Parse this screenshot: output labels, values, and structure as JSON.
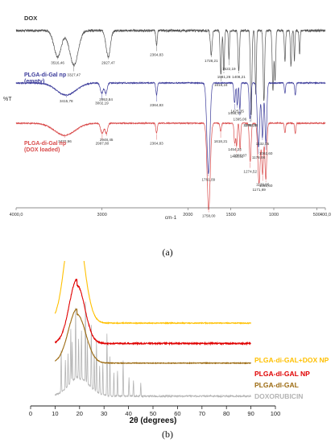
{
  "chart_data": [
    {
      "type": "line",
      "panel_label": "(a)",
      "xlabel": "cm-1",
      "ylabel": "%T",
      "xlim": [
        4000.0,
        400.0
      ],
      "x_ticks": [
        "4000,0",
        "3000",
        "2000",
        "1500",
        "1000",
        "500",
        "400,0"
      ],
      "x_tick_values": [
        4000,
        3000,
        2000,
        1500,
        1000,
        500,
        400
      ],
      "series": [
        {
          "name": "DOX",
          "color": "#555555",
          "baseline": 0.88,
          "noise": 0.012,
          "peaks": [
            {
              "x": 3516.46,
              "depth": 0.13,
              "w": 60,
              "label": "3516,46"
            },
            {
              "x": 3327.47,
              "depth": 0.17,
              "w": 70,
              "label": "3327,47"
            },
            {
              "x": 2927.47,
              "depth": 0.13,
              "w": 35,
              "label": "2927,47"
            },
            {
              "x": 2364.83,
              "depth": 0.07,
              "w": 12,
              "label": "2364,83"
            },
            {
              "x": 1728.21,
              "depth": 0.12,
              "w": 14,
              "label": "1728,21"
            },
            {
              "x": 1616.24,
              "depth": 0.22,
              "w": 12,
              "label": "1616,24"
            },
            {
              "x": 1581.26,
              "depth": 0.2,
              "w": 10,
              "label": "1581,26"
            },
            {
              "x": 1522.19,
              "depth": 0.14,
              "w": 8,
              "label": "1522,19"
            },
            {
              "x": 1408.21,
              "depth": 0.2,
              "w": 12,
              "label": "1408,21"
            },
            {
              "x": 1263.28,
              "depth": 0.42,
              "w": 12,
              "label": "1263,28"
            },
            {
              "x": 1210,
              "depth": 0.32,
              "w": 10,
              "label": ""
            },
            {
              "x": 1115,
              "depth": 0.35,
              "w": 12,
              "label": ""
            },
            {
              "x": 1010,
              "depth": 0.3,
              "w": 12,
              "label": ""
            },
            {
              "x": 985,
              "depth": 0.25,
              "w": 10,
              "label": ""
            },
            {
              "x": 870,
              "depth": 0.15,
              "w": 10,
              "label": ""
            },
            {
              "x": 800,
              "depth": 0.18,
              "w": 10,
              "label": ""
            },
            {
              "x": 760,
              "depth": 0.15,
              "w": 8,
              "label": ""
            },
            {
              "x": 700,
              "depth": 0.12,
              "w": 8,
              "label": ""
            }
          ]
        },
        {
          "name": "PLGA-di-Gal np (empty)",
          "color": "#3b3b9a",
          "baseline": 0.62,
          "noise": 0.006,
          "peaks": [
            {
              "x": 3415.78,
              "depth": 0.06,
              "w": 160,
              "label": "3415,78"
            },
            {
              "x": 3002.19,
              "depth": 0.05,
              "w": 25,
              "label": "3002,19"
            },
            {
              "x": 2953.84,
              "depth": 0.05,
              "w": 20,
              "label": "2953,84"
            },
            {
              "x": 2364.83,
              "depth": 0.06,
              "w": 12,
              "label": "2364,83"
            },
            {
              "x": 1761.09,
              "depth": 0.45,
              "w": 25,
              "label": "1761,09"
            },
            {
              "x": 1456.43,
              "depth": 0.1,
              "w": 12,
              "label": "1456,43"
            },
            {
              "x": 1425.35,
              "depth": 0.11,
              "w": 10,
              "label": "1425,35"
            },
            {
              "x": 1395.06,
              "depth": 0.13,
              "w": 10,
              "label": "1395,06"
            },
            {
              "x": 1276.71,
              "depth": 0.18,
              "w": 14,
              "label": "1276,71"
            },
            {
              "x": 1178.06,
              "depth": 0.32,
              "w": 20,
              "label": "1178,06"
            },
            {
              "x": 1132.05,
              "depth": 0.27,
              "w": 15,
              "label": "1132,05"
            },
            {
              "x": 1092.6,
              "depth": 0.3,
              "w": 15,
              "label": "1092,60"
            },
            {
              "x": 870,
              "depth": 0.05,
              "w": 10,
              "label": ""
            },
            {
              "x": 750,
              "depth": 0.06,
              "w": 10,
              "label": ""
            }
          ]
        },
        {
          "name": "PLGA-di-Gal np (DOX loaded)",
          "color": "#d94a4a",
          "baseline": 0.42,
          "noise": 0.006,
          "peaks": [
            {
              "x": 3432.96,
              "depth": 0.06,
              "w": 170,
              "label": "3432,96"
            },
            {
              "x": 2997.8,
              "depth": 0.05,
              "w": 25,
              "label": "2997,80"
            },
            {
              "x": 2948.45,
              "depth": 0.05,
              "w": 20,
              "label": "2948,45"
            },
            {
              "x": 2364.83,
              "depth": 0.05,
              "w": 12,
              "label": "2364,83"
            },
            {
              "x": 1758.0,
              "depth": 0.43,
              "w": 25,
              "label": "1758,00"
            },
            {
              "x": 1618.21,
              "depth": 0.04,
              "w": 12,
              "label": "1618,21"
            },
            {
              "x": 1454.24,
              "depth": 0.1,
              "w": 12,
              "label": "1454,24"
            },
            {
              "x": 1432.32,
              "depth": 0.11,
              "w": 10,
              "label": "1432,32"
            },
            {
              "x": 1392.87,
              "depth": 0.13,
              "w": 10,
              "label": "1392,87"
            },
            {
              "x": 1274.52,
              "depth": 0.19,
              "w": 14,
              "label": "1274,52"
            },
            {
              "x": 1171.69,
              "depth": 0.3,
              "w": 20,
              "label": "1171,69"
            },
            {
              "x": 1129.86,
              "depth": 0.25,
              "w": 15,
              "label": "1129,86"
            },
            {
              "x": 1092.6,
              "depth": 0.28,
              "w": 15,
              "label": "1092,60"
            },
            {
              "x": 870,
              "depth": 0.05,
              "w": 10,
              "label": ""
            },
            {
              "x": 750,
              "depth": 0.05,
              "w": 10,
              "label": ""
            }
          ]
        }
      ]
    },
    {
      "type": "line",
      "panel_label": "(b)",
      "xlabel": "2θ (degrees)",
      "ylabel": "",
      "xlim": [
        0,
        100
      ],
      "x_ticks": [
        0,
        10,
        20,
        30,
        40,
        50,
        60,
        70,
        80,
        90,
        100
      ],
      "grid": false,
      "legend_placement": "right, inline labels beside each curve",
      "series": [
        {
          "name": "PLGA-di-GAL+DOX NP",
          "color": "#ffc000",
          "x_range": [
            10,
            90
          ],
          "offset": 0.6,
          "tail": 0.04,
          "broad_peak": {
            "x": 18,
            "height": 0.95,
            "width": 5
          },
          "noise": 0.012,
          "sharp_peaks": []
        },
        {
          "name": "PLGA-dl-GAL NP",
          "color": "#e00000",
          "x_range": [
            10,
            90
          ],
          "offset": 0.43,
          "tail": 0.05,
          "broad_peak": {
            "x": 19,
            "height": 0.5,
            "width": 4.5
          },
          "noise": 0.02,
          "sharp_peaks": []
        },
        {
          "name": "PLGA-dl-GAL",
          "color": "#9c6a10",
          "x_range": [
            10,
            90
          ],
          "offset": 0.3,
          "tail": 0.03,
          "broad_peak": {
            "x": 19,
            "height": 0.42,
            "width": 5
          },
          "noise": 0.01,
          "sharp_peaks": []
        },
        {
          "name": "DOXORUBICIN",
          "color": "#b4b4b4",
          "x_range": [
            10,
            90
          ],
          "offset": 0.05,
          "tail": 0.02,
          "broad_peak": {
            "x": 20,
            "height": 0.15,
            "width": 6
          },
          "noise": 0.025,
          "sharp_peaks": [
            {
              "x": 12.5,
              "h": 0.32
            },
            {
              "x": 14.2,
              "h": 0.22
            },
            {
              "x": 15.3,
              "h": 0.25
            },
            {
              "x": 16.4,
              "h": 0.42
            },
            {
              "x": 17.0,
              "h": 0.3
            },
            {
              "x": 18.4,
              "h": 0.55
            },
            {
              "x": 19.6,
              "h": 0.3
            },
            {
              "x": 20.8,
              "h": 0.38
            },
            {
              "x": 22.4,
              "h": 0.62
            },
            {
              "x": 23.2,
              "h": 0.32
            },
            {
              "x": 24.8,
              "h": 0.48
            },
            {
              "x": 26.0,
              "h": 0.28
            },
            {
              "x": 26.9,
              "h": 0.4
            },
            {
              "x": 28.2,
              "h": 0.22
            },
            {
              "x": 29.5,
              "h": 0.25
            },
            {
              "x": 31.2,
              "h": 0.48
            },
            {
              "x": 32.4,
              "h": 0.3
            },
            {
              "x": 34.0,
              "h": 0.18
            },
            {
              "x": 35.5,
              "h": 0.2
            },
            {
              "x": 37.8,
              "h": 0.28
            },
            {
              "x": 40.2,
              "h": 0.14
            },
            {
              "x": 42.0,
              "h": 0.12
            },
            {
              "x": 45.0,
              "h": 0.1
            }
          ]
        }
      ]
    }
  ]
}
